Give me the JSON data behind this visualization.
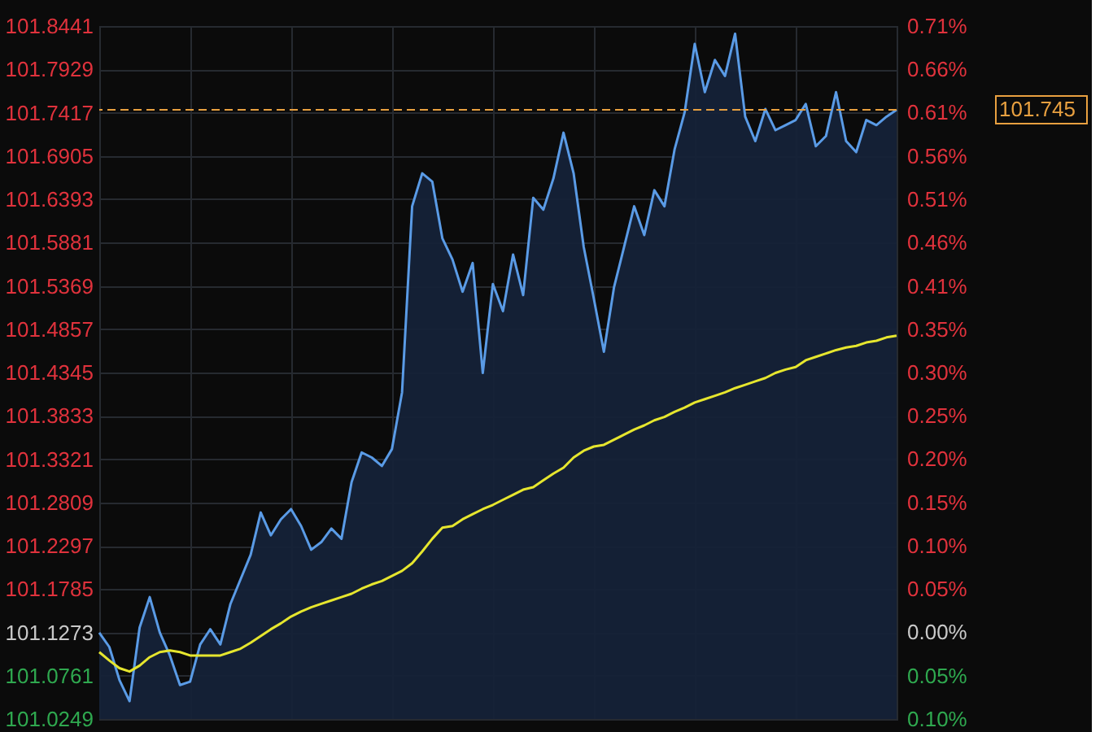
{
  "chart_data": {
    "type": "line",
    "categories": [
      null,
      null,
      null,
      null,
      null,
      null,
      null,
      null,
      null,
      null,
      null,
      null,
      null,
      null,
      null,
      null,
      null,
      null,
      null,
      null,
      null,
      null,
      null,
      null,
      null,
      null,
      null,
      null,
      null,
      null,
      null,
      null,
      null,
      null,
      null,
      null,
      null,
      null,
      null,
      null,
      null,
      null,
      null,
      null,
      null,
      null,
      null,
      null,
      null,
      null,
      null,
      null,
      null,
      null,
      null,
      null,
      null,
      null,
      null,
      null,
      null,
      null,
      null,
      null,
      null,
      null,
      null,
      null,
      null,
      null,
      null,
      null,
      null,
      null,
      null,
      null,
      null,
      null,
      null,
      null
    ],
    "series": [
      {
        "type": "area",
        "color": "#5a9be6",
        "values": [
          101.127,
          101.11,
          101.071,
          101.046,
          101.133,
          101.169,
          101.127,
          101.1,
          101.065,
          101.069,
          101.113,
          101.131,
          101.113,
          101.161,
          101.19,
          101.219,
          101.269,
          101.242,
          101.261,
          101.273,
          101.253,
          101.225,
          101.234,
          101.25,
          101.238,
          101.305,
          101.34,
          101.334,
          101.324,
          101.344,
          101.411,
          101.631,
          101.67,
          101.66,
          101.593,
          101.568,
          101.53,
          101.564,
          101.434,
          101.539,
          101.507,
          101.574,
          101.526,
          101.641,
          101.627,
          101.664,
          101.718,
          101.67,
          101.583,
          101.522,
          101.459,
          101.535,
          101.583,
          101.631,
          101.597,
          101.65,
          101.631,
          101.698,
          101.742,
          101.823,
          101.766,
          101.804,
          101.785,
          101.835,
          101.737,
          101.708,
          101.746,
          101.721,
          101.727,
          101.733,
          101.752,
          101.702,
          101.714,
          101.766,
          101.708,
          101.695,
          101.733,
          101.727,
          101.737,
          101.745
        ]
      },
      {
        "color": "#e6e62e",
        "values": [
          101.104,
          101.094,
          101.085,
          101.081,
          101.088,
          101.098,
          101.104,
          101.106,
          101.104,
          101.1,
          101.1,
          101.1,
          101.1,
          101.104,
          101.108,
          101.115,
          101.123,
          101.131,
          101.138,
          101.146,
          101.152,
          101.157,
          101.161,
          101.165,
          101.169,
          101.173,
          101.179,
          101.184,
          101.188,
          101.194,
          101.2,
          101.209,
          101.223,
          101.238,
          101.251,
          101.253,
          101.261,
          101.267,
          101.273,
          101.278,
          101.284,
          101.29,
          101.296,
          101.299,
          101.307,
          101.315,
          101.322,
          101.334,
          101.342,
          101.347,
          101.349,
          101.355,
          101.361,
          101.367,
          101.372,
          101.378,
          101.382,
          101.388,
          101.393,
          101.399,
          101.403,
          101.407,
          101.411,
          101.416,
          101.42,
          101.424,
          101.428,
          101.434,
          101.438,
          101.441,
          101.449,
          101.453,
          101.457,
          101.461,
          101.464,
          101.466,
          101.47,
          101.472,
          101.476,
          101.478
        ]
      }
    ],
    "ylim": [
      101.0249,
      101.8441
    ],
    "yticks": [
      101.0249,
      101.0761,
      101.1273,
      101.1785,
      101.2297,
      101.2809,
      101.3321,
      101.3833,
      101.4345,
      101.4857,
      101.5369,
      101.5881,
      101.6393,
      101.6905,
      101.7417,
      101.7929,
      101.8441
    ],
    "y2lim": [
      -0.1013,
      0.7088
    ],
    "y2ticks": [
      {
        "value": -0.1013,
        "label": "0.10%"
      },
      {
        "value": -0.0506,
        "label": "0.05%"
      },
      {
        "value": 0,
        "label": "0.00%"
      },
      {
        "value": 0.0506,
        "label": "0.05%"
      },
      {
        "value": 0.1013,
        "label": "0.10%"
      },
      {
        "value": 0.1519,
        "label": "0.15%"
      },
      {
        "value": 0.2025,
        "label": "0.20%"
      },
      {
        "value": 0.2532,
        "label": "0.25%"
      },
      {
        "value": 0.3038,
        "label": "0.30%"
      },
      {
        "value": 0.3544,
        "label": "0.35%"
      },
      {
        "value": 0.405,
        "label": "0.41%"
      },
      {
        "value": 0.4557,
        "label": "0.46%"
      },
      {
        "value": 0.5063,
        "label": "0.51%"
      },
      {
        "value": 0.557,
        "label": "0.56%"
      },
      {
        "value": 0.6076,
        "label": "0.61%"
      },
      {
        "value": 0.6582,
        "label": "0.66%"
      },
      {
        "value": 0.7088,
        "label": "0.71%"
      }
    ],
    "ref_lines": [
      {
        "axis": "y",
        "value": 101.745,
        "label": "101.745",
        "color": "#e8a040",
        "line_style": "dashed"
      }
    ],
    "grid": true,
    "marker": "none",
    "line_style": "solid"
  }
}
